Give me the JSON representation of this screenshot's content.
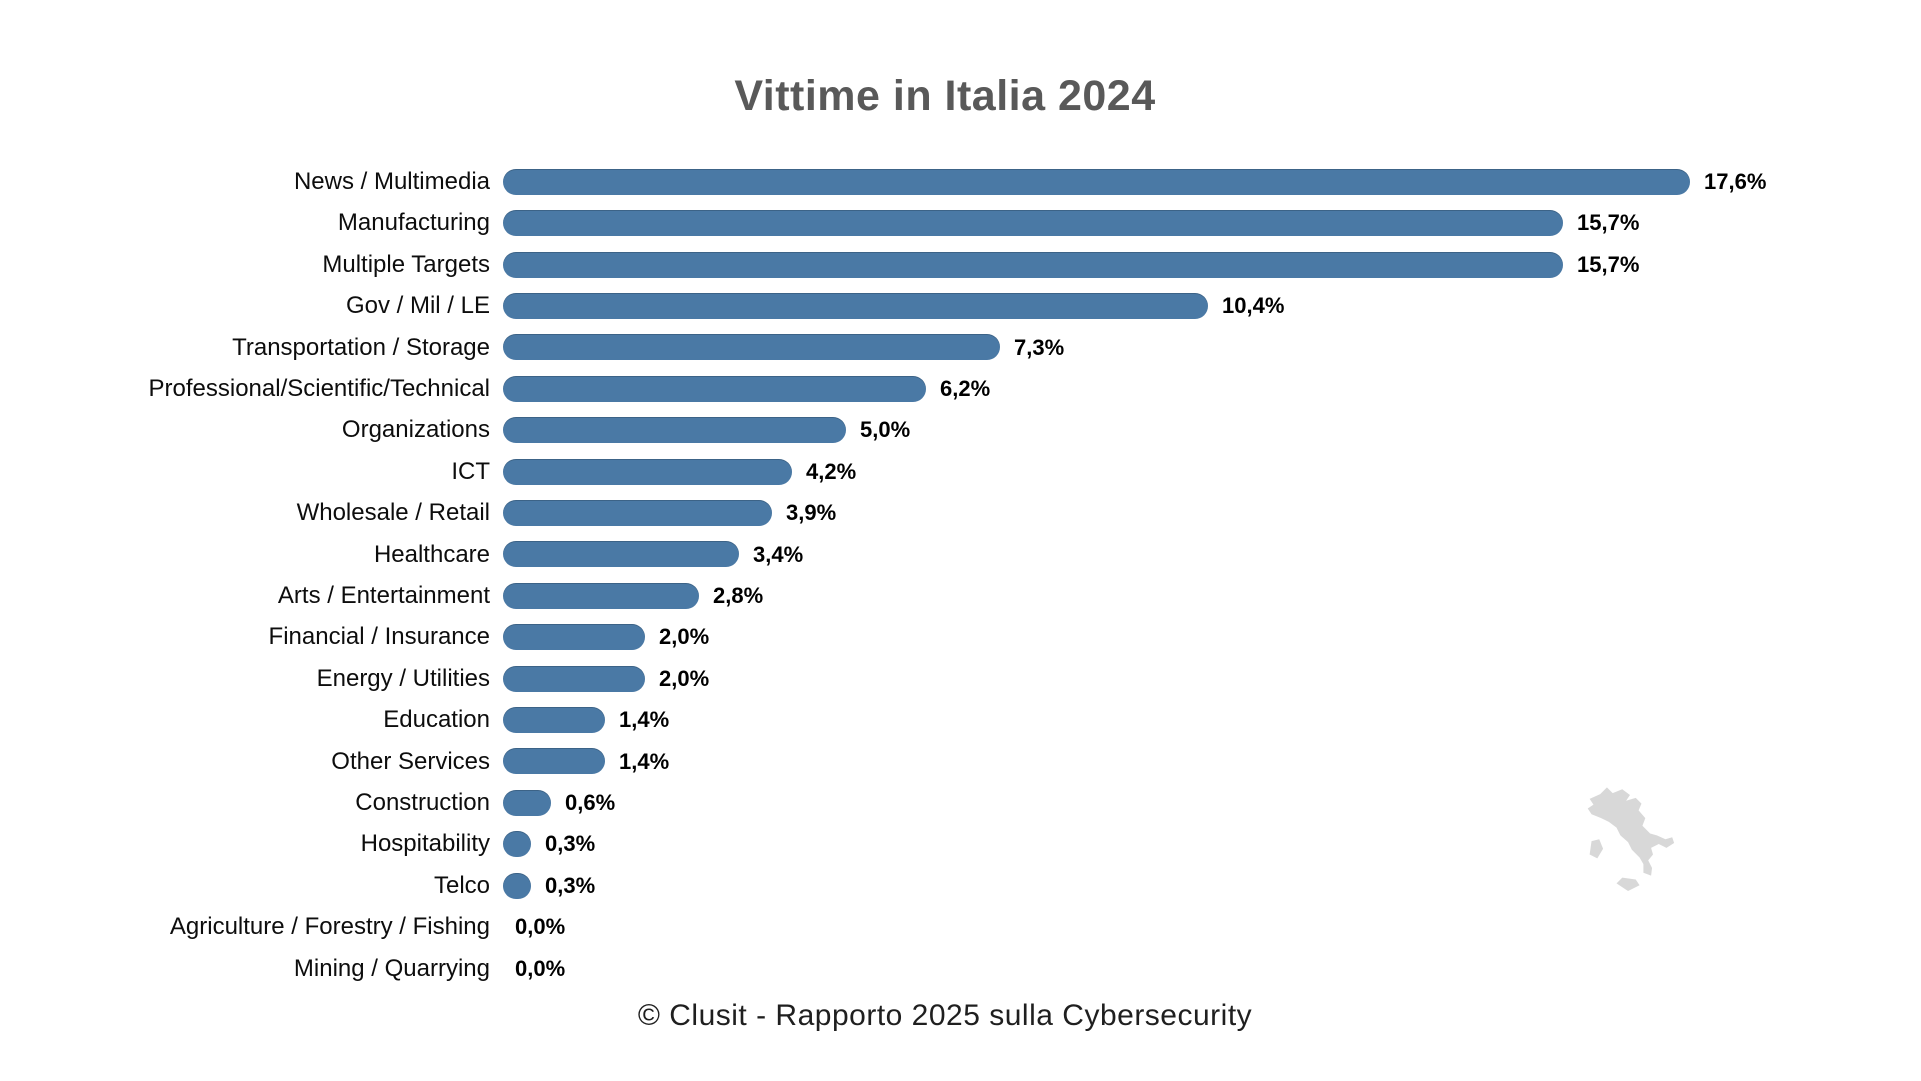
{
  "title": "Vittime in Italia 2024",
  "footer": "© Clusit - Rapporto 2025 sulla Cybersecurity",
  "colors": {
    "bar": "#4a79a5",
    "title_text": "#595959",
    "label_text": "#0d0d0d",
    "map_silhouette": "#d8d8d8"
  },
  "chart_data": {
    "type": "bar",
    "orientation": "horizontal",
    "title": "Vittime in Italia 2024",
    "xlabel": "",
    "ylabel": "",
    "unit": "%",
    "xlim": [
      0,
      18
    ],
    "grid": false,
    "legend": false,
    "categories": [
      "News / Multimedia",
      "Manufacturing",
      "Multiple Targets",
      "Gov / Mil / LE",
      "Transportation / Storage",
      "Professional/Scientific/Technical",
      "Organizations",
      "ICT",
      "Wholesale / Retail",
      "Healthcare",
      "Arts / Entertainment",
      "Financial / Insurance",
      "Energy / Utilities",
      "Education",
      "Other Services",
      "Construction",
      "Hospitability",
      "Telco",
      "Agriculture / Forestry / Fishing",
      "Mining / Quarrying"
    ],
    "values": [
      17.6,
      15.7,
      15.7,
      10.4,
      7.3,
      6.2,
      5.0,
      4.2,
      3.9,
      3.4,
      2.8,
      2.0,
      2.0,
      1.4,
      1.4,
      0.6,
      0.3,
      0.3,
      0.0,
      0.0
    ],
    "value_labels": [
      "17,6%",
      "15,7%",
      "15,7%",
      "10,4%",
      "7,3%",
      "6,2%",
      "5,0%",
      "4,2%",
      "3,9%",
      "3,4%",
      "2,8%",
      "2,0%",
      "2,0%",
      "1,4%",
      "1,4%",
      "0,6%",
      "0,3%",
      "0,3%",
      "0,0%",
      "0,0%"
    ],
    "source_caption": "© Clusit - Rapporto 2025 sulla Cybersecurity"
  }
}
